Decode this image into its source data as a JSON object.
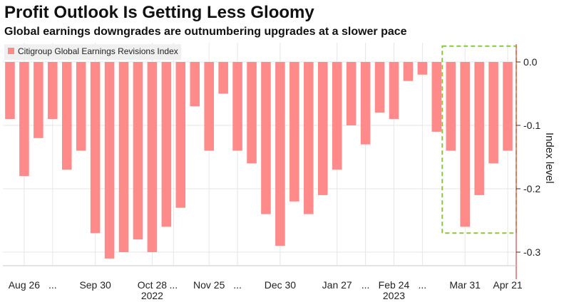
{
  "chart_data": {
    "type": "bar",
    "title": "Profit Outlook Is Getting Less Gloomy",
    "subtitle": "Global earnings downgrades are outnumbering upgrades at a slower pace",
    "legend": "Citigroup Global Earnings Revisions Index",
    "ylabel": "Index level",
    "ylim": [
      -0.34,
      0.02
    ],
    "yticks": [
      0.0,
      -0.1,
      -0.2,
      -0.3
    ],
    "ytick_labels": [
      "0.0",
      "-0.1",
      "-0.2",
      "-0.3"
    ],
    "values": [
      -0.09,
      -0.18,
      -0.12,
      -0.09,
      -0.17,
      -0.14,
      -0.27,
      -0.31,
      -0.3,
      -0.28,
      -0.3,
      -0.26,
      -0.23,
      -0.07,
      -0.14,
      -0.05,
      -0.14,
      -0.16,
      -0.24,
      -0.29,
      -0.22,
      -0.24,
      -0.21,
      -0.17,
      -0.1,
      -0.13,
      -0.08,
      -0.09,
      -0.03,
      -0.02,
      -0.11,
      -0.14,
      -0.26,
      -0.21,
      -0.16,
      -0.14
    ],
    "x_tick_labels": [
      {
        "label": "Aug 26",
        "index": 1
      },
      {
        "label": "...",
        "index": 3
      },
      {
        "label": "Sep 30",
        "index": 6
      },
      {
        "label": "Oct 28",
        "index": 10
      },
      {
        "label": "...",
        "index": 11.5
      },
      {
        "label": "Nov 25",
        "index": 14
      },
      {
        "label": "...",
        "index": 16
      },
      {
        "label": "Dec 30",
        "index": 19
      },
      {
        "label": "Jan 27",
        "index": 23
      },
      {
        "label": "...",
        "index": 25
      },
      {
        "label": "Feb 24",
        "index": 27
      },
      {
        "label": "...",
        "index": 29
      },
      {
        "label": "Mar 31",
        "index": 32
      },
      {
        "label": "Apr 21",
        "index": 35
      }
    ],
    "year_labels": [
      {
        "label": "2022",
        "index": 10
      },
      {
        "label": "2023",
        "index": 27
      }
    ],
    "highlight": {
      "from_index": 31,
      "to_index": 35,
      "ymin": -0.27,
      "ymax": 0.025
    },
    "colors": {
      "bar": "#ff8a8a",
      "highlight": "#8cc63f",
      "grid": "#e6e6e6",
      "axis": "#e26a6a"
    }
  }
}
